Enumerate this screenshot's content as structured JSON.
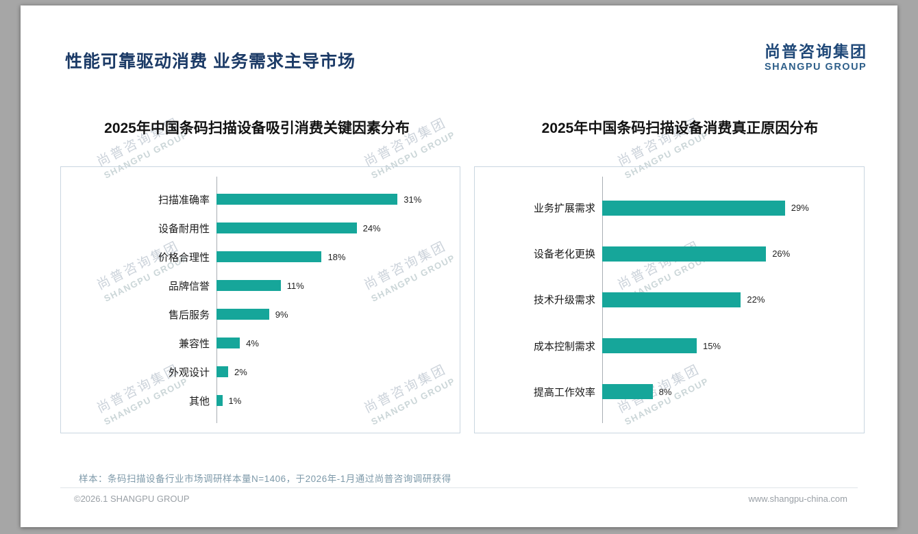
{
  "slide": {
    "title": "性能可靠驱动消费 业务需求主导市场",
    "logo": {
      "cn": "尚普咨询集团",
      "en": "SHANGPU GROUP"
    },
    "watermark": {
      "cn": "尚普咨询集团",
      "en": "SHANGPU GROUP"
    },
    "footer": {
      "note": "样本：条码扫描设备行业市场调研样本量N=1406，于2026年-1月通过尚普咨询调研获得",
      "copyright": "©2026.1 SHANGPU GROUP",
      "website": "www.shangpu-china.com"
    },
    "colors": {
      "accent": "#16A69A",
      "title_navy": "#1B3A66",
      "logo_navy": "#1F4878"
    }
  },
  "chart_data": [
    {
      "type": "bar",
      "orientation": "horizontal",
      "title": "2025年中国条码扫描设备吸引消费关键因素分布",
      "categories": [
        "扫描准确率",
        "设备耐用性",
        "价格合理性",
        "品牌信誉",
        "售后服务",
        "兼容性",
        "外观设计",
        "其他"
      ],
      "values": [
        31,
        24,
        18,
        11,
        9,
        4,
        2,
        1
      ],
      "unit": "%",
      "xlim": [
        0,
        40
      ],
      "grid": false,
      "legend": "none",
      "bar_color": "#16A69A"
    },
    {
      "type": "bar",
      "orientation": "horizontal",
      "title": "2025年中国条码扫描设备消费真正原因分布",
      "categories": [
        "业务扩展需求",
        "设备老化更换",
        "技术升级需求",
        "成本控制需求",
        "提高工作效率"
      ],
      "values": [
        29,
        26,
        22,
        15,
        8
      ],
      "unit": "%",
      "xlim": [
        0,
        40
      ],
      "grid": false,
      "legend": "none",
      "bar_color": "#16A69A"
    }
  ]
}
